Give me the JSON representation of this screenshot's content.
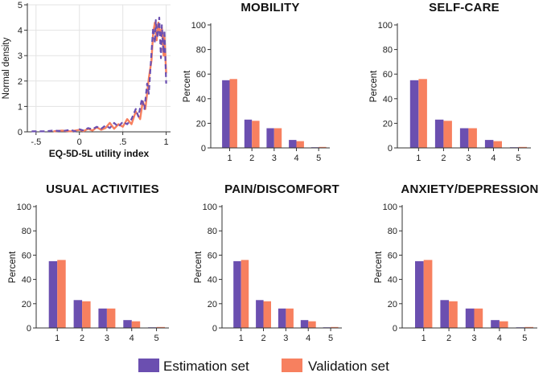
{
  "legend": {
    "items": [
      {
        "label": "Estimation set",
        "color": "#6b4fb0"
      },
      {
        "label": "Validation set",
        "color": "#f7805f"
      }
    ]
  },
  "chart_data": [
    {
      "type": "line",
      "title": "",
      "xlabel": "EQ-5D-5L utility index",
      "ylabel": "Normal density",
      "xlim": [
        -0.6,
        1.05
      ],
      "ylim": [
        0,
        5
      ],
      "xticks": [
        {
          "v": -0.5,
          "label": "-.5"
        },
        {
          "v": 0,
          "label": "0"
        },
        {
          "v": 0.5,
          "label": ".5"
        },
        {
          "v": 1,
          "label": "1"
        }
      ],
      "yticks": [
        0,
        1,
        2,
        3,
        4,
        5
      ],
      "series": [
        {
          "name": "Estimation set",
          "style": "dashed",
          "x": [
            -0.55,
            -0.4,
            -0.3,
            -0.2,
            -0.1,
            -0.05,
            0.0,
            0.05,
            0.1,
            0.15,
            0.2,
            0.25,
            0.3,
            0.35,
            0.4,
            0.45,
            0.5,
            0.55,
            0.6,
            0.65,
            0.68,
            0.72,
            0.75,
            0.78,
            0.8,
            0.83,
            0.85,
            0.87,
            0.88,
            0.9,
            0.92,
            0.94,
            0.95,
            0.97,
            0.98,
            1.0
          ],
          "y": [
            0.02,
            0.02,
            0.05,
            0.03,
            0.08,
            0.02,
            0.1,
            0.05,
            0.15,
            0.1,
            0.2,
            0.12,
            0.25,
            0.15,
            0.35,
            0.2,
            0.4,
            0.3,
            0.5,
            0.9,
            0.6,
            1.3,
            0.9,
            1.9,
            1.5,
            3.1,
            4.1,
            3.5,
            4.4,
            3.7,
            4.5,
            2.9,
            4.2,
            3.1,
            4.0,
            1.9
          ]
        },
        {
          "name": "Validation set",
          "style": "solid",
          "x": [
            -0.3,
            -0.2,
            -0.1,
            0.0,
            0.05,
            0.1,
            0.15,
            0.2,
            0.25,
            0.3,
            0.35,
            0.4,
            0.45,
            0.5,
            0.55,
            0.6,
            0.65,
            0.7,
            0.73,
            0.76,
            0.8,
            0.83,
            0.85,
            0.87,
            0.89,
            0.91,
            0.93,
            0.95,
            0.97,
            0.98,
            1.0
          ],
          "y": [
            0.02,
            0.05,
            0.02,
            0.08,
            0.03,
            0.12,
            0.05,
            0.18,
            0.08,
            0.15,
            0.35,
            0.12,
            0.3,
            0.2,
            0.5,
            0.3,
            0.8,
            0.5,
            1.2,
            0.9,
            2.1,
            2.8,
            3.9,
            4.3,
            3.6,
            4.3,
            3.8,
            4.1,
            3.0,
            3.8,
            2.3
          ]
        }
      ]
    },
    {
      "type": "bar",
      "title": "MOBILITY",
      "xlabel": "",
      "ylabel": "Percent",
      "categories": [
        "1",
        "2",
        "3",
        "4",
        "5"
      ],
      "ylim": [
        0,
        100
      ],
      "yticks": [
        0,
        20,
        40,
        60,
        80,
        100
      ],
      "series": [
        {
          "name": "Estimation set",
          "values": [
            55,
            23,
            16,
            6.5,
            0.5
          ]
        },
        {
          "name": "Validation set",
          "values": [
            56,
            22,
            16,
            5.5,
            0.8
          ]
        }
      ]
    },
    {
      "type": "bar",
      "title": "SELF-CARE",
      "xlabel": "",
      "ylabel": "Percent",
      "categories": [
        "1",
        "2",
        "3",
        "4",
        "5"
      ],
      "ylim": [
        0,
        100
      ],
      "yticks": [
        0,
        20,
        40,
        60,
        80,
        100
      ],
      "series": [
        {
          "name": "Estimation set",
          "values": [
            55,
            23,
            16,
            6.5,
            0.5
          ]
        },
        {
          "name": "Validation set",
          "values": [
            56,
            22,
            16,
            5.5,
            0.8
          ]
        }
      ]
    },
    {
      "type": "bar",
      "title": "USUAL ACTIVITIES",
      "xlabel": "",
      "ylabel": "Percent",
      "categories": [
        "1",
        "2",
        "3",
        "4",
        "5"
      ],
      "ylim": [
        0,
        100
      ],
      "yticks": [
        0,
        20,
        40,
        60,
        80,
        100
      ],
      "series": [
        {
          "name": "Estimation set",
          "values": [
            55,
            23,
            16,
            6.5,
            0.5
          ]
        },
        {
          "name": "Validation set",
          "values": [
            56,
            22,
            16,
            5.5,
            0.8
          ]
        }
      ]
    },
    {
      "type": "bar",
      "title": "PAIN/DISCOMFORT",
      "xlabel": "",
      "ylabel": "Percent",
      "categories": [
        "1",
        "2",
        "3",
        "4",
        "5"
      ],
      "ylim": [
        0,
        100
      ],
      "yticks": [
        0,
        20,
        40,
        60,
        80,
        100
      ],
      "series": [
        {
          "name": "Estimation set",
          "values": [
            55,
            23,
            16,
            6.5,
            0.5
          ]
        },
        {
          "name": "Validation set",
          "values": [
            56,
            22,
            16,
            5.5,
            0.8
          ]
        }
      ]
    },
    {
      "type": "bar",
      "title": "ANXIETY/DEPRESSION",
      "xlabel": "",
      "ylabel": "Percent",
      "categories": [
        "1",
        "2",
        "3",
        "4",
        "5"
      ],
      "ylim": [
        0,
        100
      ],
      "yticks": [
        0,
        20,
        40,
        60,
        80,
        100
      ],
      "series": [
        {
          "name": "Estimation set",
          "values": [
            55,
            23,
            16,
            6.5,
            0.5
          ]
        },
        {
          "name": "Validation set",
          "values": [
            56,
            22,
            16,
            5.5,
            0.8
          ]
        }
      ]
    }
  ]
}
